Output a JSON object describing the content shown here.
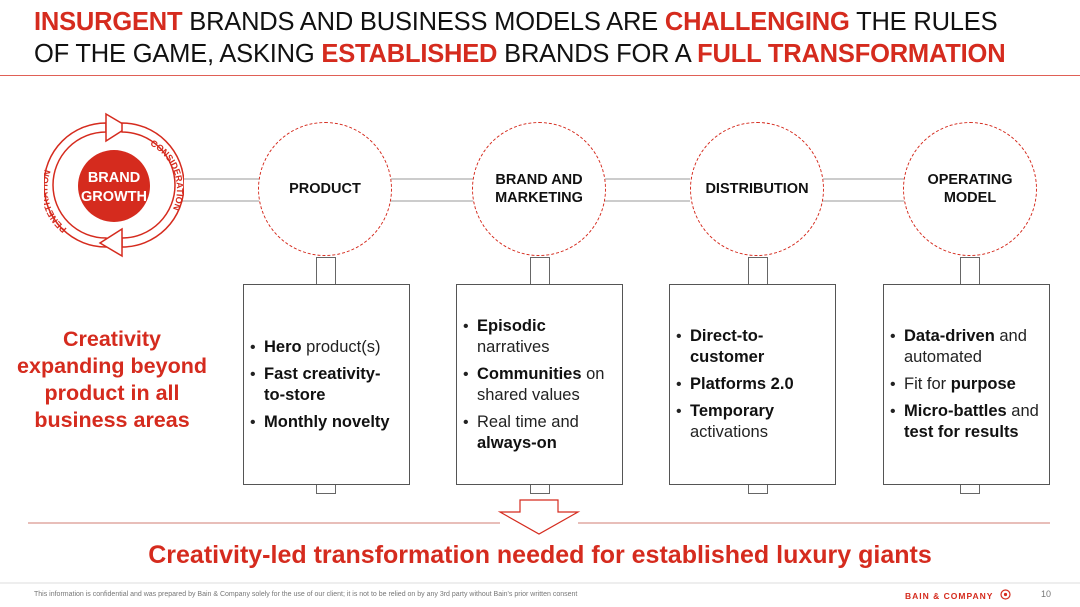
{
  "title": {
    "line1": [
      {
        "text": "INSURGENT",
        "highlight": true
      },
      {
        "text": " BRANDS AND BUSINESS MODELS ARE ",
        "highlight": false
      },
      {
        "text": "CHALLENGING",
        "highlight": true
      },
      {
        "text": " THE RULES",
        "highlight": false
      }
    ],
    "line2": [
      {
        "text": "OF THE GAME, ASKING ",
        "highlight": false
      },
      {
        "text": "ESTABLISHED",
        "highlight": true
      },
      {
        "text": " BRANDS FOR A ",
        "highlight": false
      },
      {
        "text": "FULL TRANSFORMATION",
        "highlight": true
      }
    ]
  },
  "brand_growth": {
    "center_line1": "BRAND",
    "center_line2": "GROWTH",
    "left_label": "PENETRATION",
    "right_label": "CONSIDERATION"
  },
  "pillars": [
    {
      "name": "PRODUCT",
      "bullets": [
        [
          {
            "t": "Hero",
            "b": true
          },
          {
            "t": " product(s)",
            "b": false
          }
        ],
        [
          {
            "t": "Fast creativity-to-store",
            "b": true
          }
        ],
        [
          {
            "t": "Monthly novelty",
            "b": true
          }
        ]
      ]
    },
    {
      "name": "BRAND AND MARKETING",
      "bullets": [
        [
          {
            "t": "Episodic",
            "b": true
          },
          {
            "t": " narratives",
            "b": false
          }
        ],
        [
          {
            "t": "Communities",
            "b": true
          },
          {
            "t": " on shared values",
            "b": false
          }
        ],
        [
          {
            "t": "Real time and ",
            "b": false
          },
          {
            "t": "always-on",
            "b": true
          }
        ]
      ]
    },
    {
      "name": "DISTRIBUTION",
      "bullets": [
        [
          {
            "t": "Direct-to-customer",
            "b": true
          }
        ],
        [
          {
            "t": "Platforms 2.0",
            "b": true
          }
        ],
        [
          {
            "t": "Temporary",
            "b": true
          },
          {
            "t": " activations",
            "b": false
          }
        ]
      ]
    },
    {
      "name": "OPERATING MODEL",
      "bullets": [
        [
          {
            "t": "Data-driven",
            "b": true
          },
          {
            "t": " and automated",
            "b": false
          }
        ],
        [
          {
            "t": "Fit for ",
            "b": false
          },
          {
            "t": "purpose",
            "b": true
          }
        ],
        [
          {
            "t": "Micro-battles",
            "b": true
          },
          {
            "t": " and ",
            "b": false
          },
          {
            "t": "test for results",
            "b": true
          }
        ]
      ]
    }
  ],
  "left_statement": "Creativity expanding beyond product in all business areas",
  "conclusion": "Creativity-led transformation needed for established luxury giants",
  "footer": {
    "disclaimer": "This information is confidential and was prepared by Bain & Company solely for the use of our client; it is not to be relied on by any 3rd party without Bain's prior written consent",
    "logo": "BAIN & COMPANY",
    "page": "10"
  },
  "colors": {
    "accent": "#d52b1e",
    "text": "#111111",
    "box_border": "#555555"
  }
}
